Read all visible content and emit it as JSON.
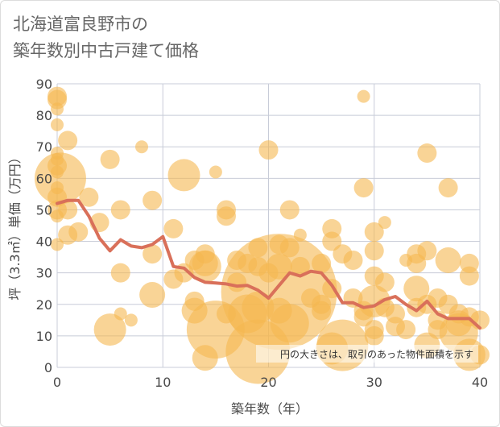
{
  "title_line1": "北海道富良野市の",
  "title_line2": "築年数別中古戸建て価格",
  "chart_data": {
    "type": "scatter",
    "xlabel": "築年数（年）",
    "ylabel": "坪（3.3㎡）単価（万円）",
    "xlim": [
      0,
      40
    ],
    "ylim": [
      0,
      90
    ],
    "x_ticks": [
      "0",
      "10",
      "20",
      "30",
      "40"
    ],
    "y_ticks": [
      "0",
      "10",
      "20",
      "30",
      "40",
      "50",
      "60",
      "70",
      "80",
      "90"
    ],
    "grid": true,
    "annotation": "円の大きさは、取引のあった物件面積を示す",
    "colors": {
      "bubble": "#f5b850",
      "line": "#d9705a",
      "grid": "#c8ccd8"
    },
    "average_line": {
      "x": [
        0,
        1,
        2,
        3,
        4,
        5,
        6,
        7,
        8,
        9,
        10,
        11,
        12,
        13,
        14,
        15,
        16,
        17,
        18,
        19,
        20,
        21,
        22,
        23,
        24,
        25,
        26,
        27,
        28,
        29,
        30,
        31,
        32,
        33,
        34,
        35,
        36,
        37,
        38,
        39,
        40
      ],
      "y": [
        52,
        53,
        53,
        48,
        41,
        37,
        40.5,
        38.5,
        38,
        39,
        41.5,
        32,
        31.5,
        28.5,
        27,
        26.8,
        26.5,
        25.8,
        26,
        24.5,
        22,
        26,
        30,
        29,
        30.5,
        30,
        26,
        20.5,
        20.5,
        19,
        19.5,
        21.5,
        22.5,
        20,
        18,
        21,
        17,
        15.5,
        15.5,
        15.5,
        12.5
      ]
    },
    "points": [
      {
        "x": 0,
        "y": 86,
        "s": 3
      },
      {
        "x": 0,
        "y": 85,
        "s": 3
      },
      {
        "x": 0,
        "y": 82,
        "s": 2
      },
      {
        "x": 0,
        "y": 77,
        "s": 2
      },
      {
        "x": 0,
        "y": 68,
        "s": 2
      },
      {
        "x": 0,
        "y": 66,
        "s": 2
      },
      {
        "x": 0,
        "y": 64,
        "s": 3
      },
      {
        "x": 0,
        "y": 62,
        "s": 2
      },
      {
        "x": 0.3,
        "y": 60,
        "s": 8
      },
      {
        "x": 0,
        "y": 57,
        "s": 2
      },
      {
        "x": 0,
        "y": 54,
        "s": 3
      },
      {
        "x": 0,
        "y": 50,
        "s": 3
      },
      {
        "x": 0,
        "y": 48,
        "s": 2
      },
      {
        "x": 0,
        "y": 39,
        "s": 2
      },
      {
        "x": 1,
        "y": 72,
        "s": 3
      },
      {
        "x": 1,
        "y": 50,
        "s": 3
      },
      {
        "x": 1,
        "y": 42,
        "s": 3
      },
      {
        "x": 2,
        "y": 43,
        "s": 3
      },
      {
        "x": 3,
        "y": 54,
        "s": 3
      },
      {
        "x": 4,
        "y": 46,
        "s": 3
      },
      {
        "x": 5,
        "y": 66,
        "s": 3
      },
      {
        "x": 5,
        "y": 12,
        "s": 5
      },
      {
        "x": 6,
        "y": 50,
        "s": 3
      },
      {
        "x": 6,
        "y": 30,
        "s": 3
      },
      {
        "x": 6,
        "y": 17,
        "s": 2
      },
      {
        "x": 7,
        "y": 15,
        "s": 2
      },
      {
        "x": 8,
        "y": 70,
        "s": 2
      },
      {
        "x": 9,
        "y": 53,
        "s": 3
      },
      {
        "x": 9,
        "y": 36,
        "s": 3
      },
      {
        "x": 9,
        "y": 23,
        "s": 4
      },
      {
        "x": 11,
        "y": 44,
        "s": 3
      },
      {
        "x": 11,
        "y": 28,
        "s": 3
      },
      {
        "x": 12,
        "y": 61,
        "s": 5
      },
      {
        "x": 12,
        "y": 30,
        "s": 3
      },
      {
        "x": 13,
        "y": 34,
        "s": 3
      },
      {
        "x": 13,
        "y": 21,
        "s": 3
      },
      {
        "x": 13,
        "y": 18,
        "s": 4
      },
      {
        "x": 14,
        "y": 36,
        "s": 3
      },
      {
        "x": 14,
        "y": 33,
        "s": 4
      },
      {
        "x": 14,
        "y": 32,
        "s": 5
      },
      {
        "x": 15,
        "y": 62,
        "s": 2
      },
      {
        "x": 15,
        "y": 12,
        "s": 9
      },
      {
        "x": 14,
        "y": 3,
        "s": 4
      },
      {
        "x": 16,
        "y": 50,
        "s": 3
      },
      {
        "x": 16,
        "y": 48,
        "s": 3
      },
      {
        "x": 16,
        "y": 17,
        "s": 3
      },
      {
        "x": 17,
        "y": 34,
        "s": 3
      },
      {
        "x": 17,
        "y": 27,
        "s": 3
      },
      {
        "x": 18,
        "y": 33,
        "s": 3
      },
      {
        "x": 18,
        "y": 17,
        "s": 6
      },
      {
        "x": 19,
        "y": 38,
        "s": 3
      },
      {
        "x": 19,
        "y": 32,
        "s": 3
      },
      {
        "x": 19,
        "y": 19,
        "s": 5
      },
      {
        "x": 19,
        "y": 5,
        "s": 10
      },
      {
        "x": 20,
        "y": 69,
        "s": 3
      },
      {
        "x": 20,
        "y": 30,
        "s": 3
      },
      {
        "x": 21,
        "y": 39,
        "s": 3
      },
      {
        "x": 21,
        "y": 32,
        "s": 4
      },
      {
        "x": 21,
        "y": 24,
        "s": 18
      },
      {
        "x": 21,
        "y": 18,
        "s": 4
      },
      {
        "x": 22,
        "y": 50,
        "s": 3
      },
      {
        "x": 22,
        "y": 38,
        "s": 3
      },
      {
        "x": 22,
        "y": 14,
        "s": 6
      },
      {
        "x": 23,
        "y": 42,
        "s": 2
      },
      {
        "x": 23,
        "y": 32,
        "s": 3
      },
      {
        "x": 24,
        "y": 22,
        "s": 3
      },
      {
        "x": 25,
        "y": 33,
        "s": 3
      },
      {
        "x": 25,
        "y": 20,
        "s": 3
      },
      {
        "x": 25,
        "y": 18,
        "s": 3
      },
      {
        "x": 26,
        "y": 44,
        "s": 3
      },
      {
        "x": 26,
        "y": 40,
        "s": 3
      },
      {
        "x": 26,
        "y": 25,
        "s": 3
      },
      {
        "x": 26,
        "y": 6,
        "s": 5
      },
      {
        "x": 27,
        "y": 36,
        "s": 3
      },
      {
        "x": 27,
        "y": 7,
        "s": 8
      },
      {
        "x": 28,
        "y": 34,
        "s": 3
      },
      {
        "x": 28,
        "y": 22,
        "s": 3
      },
      {
        "x": 29,
        "y": 86,
        "s": 2
      },
      {
        "x": 29,
        "y": 57,
        "s": 3
      },
      {
        "x": 29,
        "y": 18,
        "s": 3
      },
      {
        "x": 29,
        "y": 16,
        "s": 3
      },
      {
        "x": 30,
        "y": 43,
        "s": 3
      },
      {
        "x": 30,
        "y": 37,
        "s": 3
      },
      {
        "x": 30,
        "y": 29,
        "s": 3
      },
      {
        "x": 30,
        "y": 21,
        "s": 5
      },
      {
        "x": 30,
        "y": 12,
        "s": 3
      },
      {
        "x": 30,
        "y": 10,
        "s": 3
      },
      {
        "x": 31,
        "y": 46,
        "s": 2
      },
      {
        "x": 31,
        "y": 27,
        "s": 3
      },
      {
        "x": 31,
        "y": 19,
        "s": 3
      },
      {
        "x": 32,
        "y": 17,
        "s": 3
      },
      {
        "x": 32,
        "y": 13,
        "s": 3
      },
      {
        "x": 33,
        "y": 34,
        "s": 2
      },
      {
        "x": 33,
        "y": 12,
        "s": 3
      },
      {
        "x": 34,
        "y": 36,
        "s": 3
      },
      {
        "x": 34,
        "y": 33,
        "s": 3
      },
      {
        "x": 34,
        "y": 25,
        "s": 4
      },
      {
        "x": 34,
        "y": 19,
        "s": 3
      },
      {
        "x": 35,
        "y": 68,
        "s": 3
      },
      {
        "x": 35,
        "y": 37,
        "s": 3
      },
      {
        "x": 35,
        "y": 20,
        "s": 3
      },
      {
        "x": 35,
        "y": 7,
        "s": 4
      },
      {
        "x": 36,
        "y": 22,
        "s": 3
      },
      {
        "x": 36,
        "y": 15,
        "s": 3
      },
      {
        "x": 36,
        "y": 12,
        "s": 3
      },
      {
        "x": 37,
        "y": 57,
        "s": 3
      },
      {
        "x": 37,
        "y": 34,
        "s": 4
      },
      {
        "x": 37,
        "y": 20,
        "s": 3
      },
      {
        "x": 38,
        "y": 17,
        "s": 3
      },
      {
        "x": 38,
        "y": 14,
        "s": 4
      },
      {
        "x": 38,
        "y": 11,
        "s": 6
      },
      {
        "x": 39,
        "y": 33,
        "s": 3
      },
      {
        "x": 39,
        "y": 29,
        "s": 3
      },
      {
        "x": 39,
        "y": 16,
        "s": 3
      },
      {
        "x": 39,
        "y": 4,
        "s": 5
      },
      {
        "x": 40,
        "y": 15,
        "s": 3
      },
      {
        "x": 40,
        "y": 4,
        "s": 3
      }
    ]
  }
}
